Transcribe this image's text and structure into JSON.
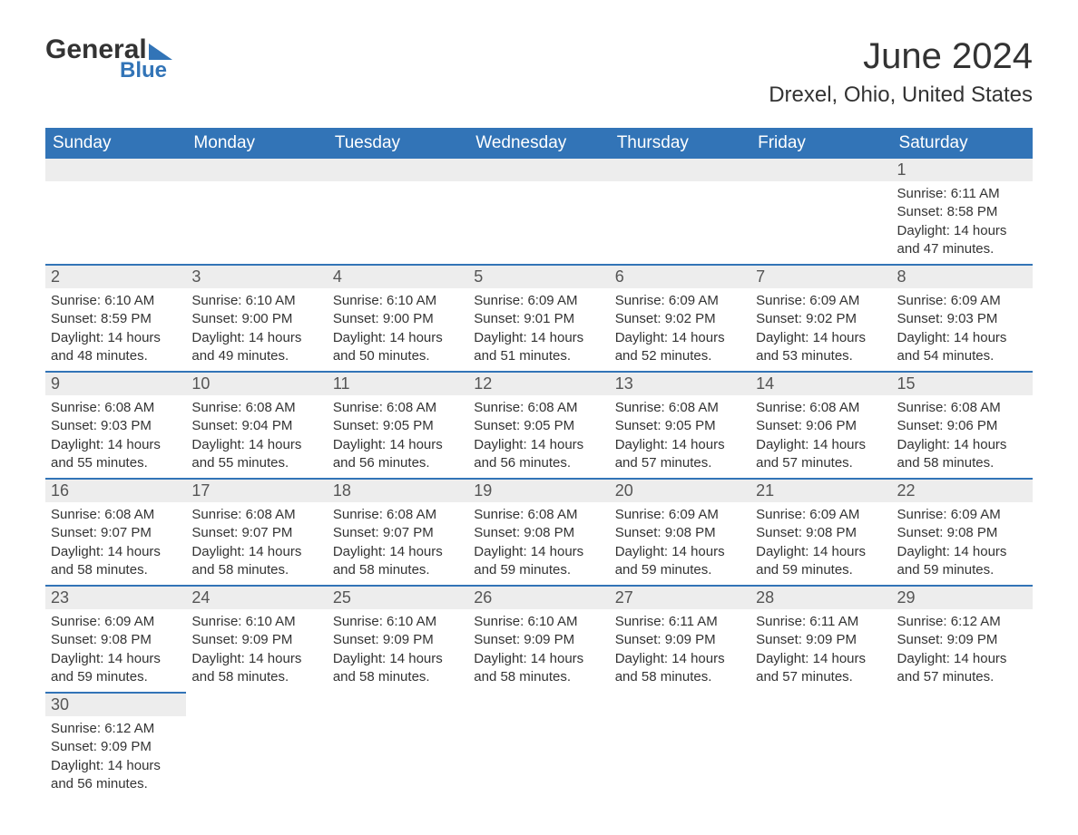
{
  "logo": {
    "text1": "General",
    "text2": "Blue"
  },
  "title": "June 2024",
  "location": "Drexel, Ohio, United States",
  "colors": {
    "header_bg": "#3274b7",
    "header_text": "#ffffff",
    "daynum_bg": "#ededed",
    "border": "#3274b7",
    "text": "#333333"
  },
  "dayNames": [
    "Sunday",
    "Monday",
    "Tuesday",
    "Wednesday",
    "Thursday",
    "Friday",
    "Saturday"
  ],
  "weeks": [
    [
      null,
      null,
      null,
      null,
      null,
      null,
      {
        "n": "1",
        "sunrise": "6:11 AM",
        "sunset": "8:58 PM",
        "dl": "14 hours and 47 minutes."
      }
    ],
    [
      {
        "n": "2",
        "sunrise": "6:10 AM",
        "sunset": "8:59 PM",
        "dl": "14 hours and 48 minutes."
      },
      {
        "n": "3",
        "sunrise": "6:10 AM",
        "sunset": "9:00 PM",
        "dl": "14 hours and 49 minutes."
      },
      {
        "n": "4",
        "sunrise": "6:10 AM",
        "sunset": "9:00 PM",
        "dl": "14 hours and 50 minutes."
      },
      {
        "n": "5",
        "sunrise": "6:09 AM",
        "sunset": "9:01 PM",
        "dl": "14 hours and 51 minutes."
      },
      {
        "n": "6",
        "sunrise": "6:09 AM",
        "sunset": "9:02 PM",
        "dl": "14 hours and 52 minutes."
      },
      {
        "n": "7",
        "sunrise": "6:09 AM",
        "sunset": "9:02 PM",
        "dl": "14 hours and 53 minutes."
      },
      {
        "n": "8",
        "sunrise": "6:09 AM",
        "sunset": "9:03 PM",
        "dl": "14 hours and 54 minutes."
      }
    ],
    [
      {
        "n": "9",
        "sunrise": "6:08 AM",
        "sunset": "9:03 PM",
        "dl": "14 hours and 55 minutes."
      },
      {
        "n": "10",
        "sunrise": "6:08 AM",
        "sunset": "9:04 PM",
        "dl": "14 hours and 55 minutes."
      },
      {
        "n": "11",
        "sunrise": "6:08 AM",
        "sunset": "9:05 PM",
        "dl": "14 hours and 56 minutes."
      },
      {
        "n": "12",
        "sunrise": "6:08 AM",
        "sunset": "9:05 PM",
        "dl": "14 hours and 56 minutes."
      },
      {
        "n": "13",
        "sunrise": "6:08 AM",
        "sunset": "9:05 PM",
        "dl": "14 hours and 57 minutes."
      },
      {
        "n": "14",
        "sunrise": "6:08 AM",
        "sunset": "9:06 PM",
        "dl": "14 hours and 57 minutes."
      },
      {
        "n": "15",
        "sunrise": "6:08 AM",
        "sunset": "9:06 PM",
        "dl": "14 hours and 58 minutes."
      }
    ],
    [
      {
        "n": "16",
        "sunrise": "6:08 AM",
        "sunset": "9:07 PM",
        "dl": "14 hours and 58 minutes."
      },
      {
        "n": "17",
        "sunrise": "6:08 AM",
        "sunset": "9:07 PM",
        "dl": "14 hours and 58 minutes."
      },
      {
        "n": "18",
        "sunrise": "6:08 AM",
        "sunset": "9:07 PM",
        "dl": "14 hours and 58 minutes."
      },
      {
        "n": "19",
        "sunrise": "6:08 AM",
        "sunset": "9:08 PM",
        "dl": "14 hours and 59 minutes."
      },
      {
        "n": "20",
        "sunrise": "6:09 AM",
        "sunset": "9:08 PM",
        "dl": "14 hours and 59 minutes."
      },
      {
        "n": "21",
        "sunrise": "6:09 AM",
        "sunset": "9:08 PM",
        "dl": "14 hours and 59 minutes."
      },
      {
        "n": "22",
        "sunrise": "6:09 AM",
        "sunset": "9:08 PM",
        "dl": "14 hours and 59 minutes."
      }
    ],
    [
      {
        "n": "23",
        "sunrise": "6:09 AM",
        "sunset": "9:08 PM",
        "dl": "14 hours and 59 minutes."
      },
      {
        "n": "24",
        "sunrise": "6:10 AM",
        "sunset": "9:09 PM",
        "dl": "14 hours and 58 minutes."
      },
      {
        "n": "25",
        "sunrise": "6:10 AM",
        "sunset": "9:09 PM",
        "dl": "14 hours and 58 minutes."
      },
      {
        "n": "26",
        "sunrise": "6:10 AM",
        "sunset": "9:09 PM",
        "dl": "14 hours and 58 minutes."
      },
      {
        "n": "27",
        "sunrise": "6:11 AM",
        "sunset": "9:09 PM",
        "dl": "14 hours and 58 minutes."
      },
      {
        "n": "28",
        "sunrise": "6:11 AM",
        "sunset": "9:09 PM",
        "dl": "14 hours and 57 minutes."
      },
      {
        "n": "29",
        "sunrise": "6:12 AM",
        "sunset": "9:09 PM",
        "dl": "14 hours and 57 minutes."
      }
    ],
    [
      {
        "n": "30",
        "sunrise": "6:12 AM",
        "sunset": "9:09 PM",
        "dl": "14 hours and 56 minutes."
      },
      null,
      null,
      null,
      null,
      null,
      null
    ]
  ],
  "labels": {
    "sunrise": "Sunrise: ",
    "sunset": "Sunset: ",
    "daylight": "Daylight: "
  }
}
